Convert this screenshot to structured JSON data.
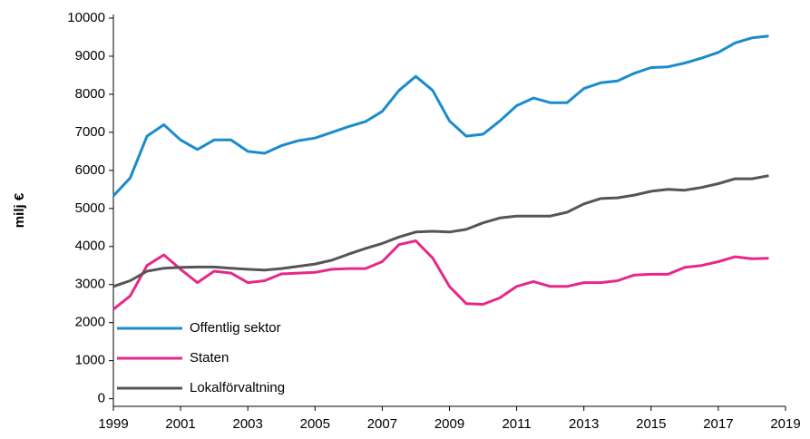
{
  "chart_data": {
    "type": "line",
    "y_label": "milj €",
    "x": [
      1999,
      1999.5,
      2000,
      2000.5,
      2001,
      2001.5,
      2002,
      2002.5,
      2003,
      2003.5,
      2004,
      2004.5,
      2005,
      2005.5,
      2006,
      2006.5,
      2007,
      2007.5,
      2008,
      2008.5,
      2009,
      2009.5,
      2010,
      2010.5,
      2011,
      2011.5,
      2012,
      2012.5,
      2013,
      2013.5,
      2014,
      2014.5,
      2015,
      2015.5,
      2016,
      2016.5,
      2017,
      2017.5,
      2018,
      2018.5
    ],
    "series": [
      {
        "name": "Offentlig sektor",
        "color": "#1a8ccc",
        "values": [
          5330,
          5800,
          6900,
          7200,
          6800,
          6550,
          6800,
          6800,
          6500,
          6450,
          6650,
          6780,
          6850,
          7000,
          7150,
          7280,
          7550,
          8100,
          8470,
          8100,
          7300,
          6900,
          6950,
          7300,
          7700,
          7900,
          7780,
          7780,
          8150,
          8300,
          8350,
          8550,
          8700,
          8720,
          8820,
          8950,
          9100,
          9350,
          9480,
          9530
        ]
      },
      {
        "name": "Staten",
        "color": "#e6288a",
        "values": [
          2350,
          2700,
          3500,
          3780,
          3400,
          3050,
          3350,
          3300,
          3050,
          3100,
          3280,
          3300,
          3320,
          3400,
          3420,
          3420,
          3600,
          4050,
          4150,
          3700,
          2950,
          2500,
          2480,
          2650,
          2950,
          3080,
          2950,
          2950,
          3050,
          3050,
          3100,
          3250,
          3270,
          3270,
          3450,
          3500,
          3600,
          3730,
          3680,
          3690
        ]
      },
      {
        "name": "Lokalförvaltning",
        "color": "#555555",
        "values": [
          2950,
          3100,
          3350,
          3430,
          3450,
          3460,
          3460,
          3430,
          3400,
          3380,
          3420,
          3480,
          3540,
          3640,
          3800,
          3950,
          4080,
          4250,
          4380,
          4400,
          4380,
          4450,
          4620,
          4750,
          4800,
          4800,
          4800,
          4900,
          5120,
          5260,
          5280,
          5350,
          5450,
          5500,
          5480,
          5550,
          5650,
          5780,
          5780,
          5860
        ]
      }
    ],
    "xlim": [
      1999,
      2019
    ],
    "xticks": [
      1999,
      2001,
      2003,
      2005,
      2007,
      2009,
      2011,
      2013,
      2015,
      2017,
      2019
    ],
    "ylim": [
      -200,
      10000
    ],
    "yticks": [
      0,
      1000,
      2000,
      3000,
      4000,
      5000,
      6000,
      7000,
      8000,
      9000,
      10000
    ],
    "grid": false,
    "legend": "lower left"
  }
}
